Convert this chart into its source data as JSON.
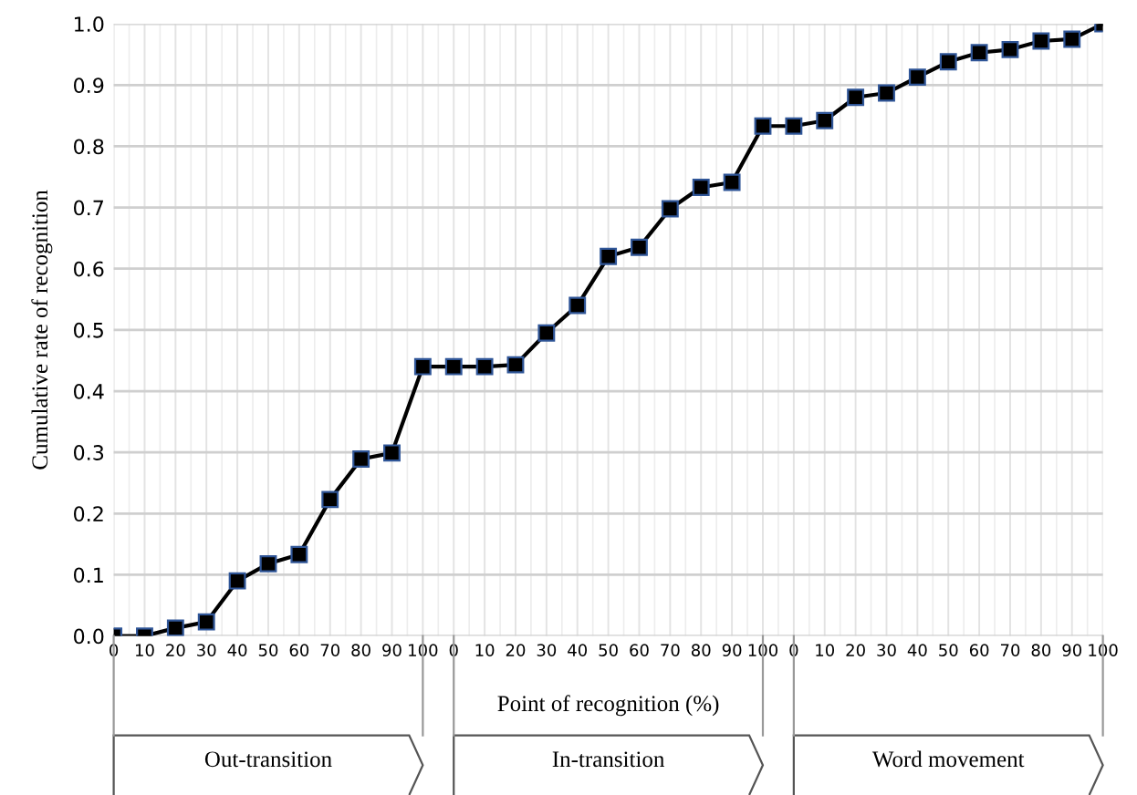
{
  "chart_data": {
    "type": "line",
    "xlabel": "Point of recognition (%)",
    "ylabel": "Cumulative rate of recognition",
    "categories": [
      "0",
      "10",
      "20",
      "30",
      "40",
      "50",
      "60",
      "70",
      "80",
      "90",
      "100",
      "0",
      "10",
      "20",
      "30",
      "40",
      "50",
      "60",
      "70",
      "80",
      "90",
      "100",
      "0",
      "10",
      "20",
      "30",
      "40",
      "50",
      "60",
      "70",
      "80",
      "90",
      "100"
    ],
    "series": [
      {
        "color": "#000000",
        "values": [
          0,
          0,
          0.013,
          0.023,
          0.09,
          0.118,
          0.133,
          0.223,
          0.289,
          0.299,
          0.44,
          0.44,
          0.44,
          0.443,
          0.495,
          0.54,
          0.62,
          0.635,
          0.698,
          0.733,
          0.741,
          0.833,
          0.833,
          0.842,
          0.88,
          0.887,
          0.913,
          0.938,
          0.953,
          0.958,
          0.972,
          0.975,
          1.0
        ]
      }
    ],
    "ylim": [
      0,
      1.0
    ],
    "yticks": [
      {
        "value": 0,
        "label": "0.0"
      },
      0.1,
      0.2,
      0.3,
      0.4,
      0.5,
      0.6,
      0.7,
      0.8,
      0.9,
      {
        "value": 1.0,
        "label": "1.0"
      }
    ],
    "grid": true,
    "marker": "square",
    "line_style": "solid",
    "legend": false,
    "annotations": [
      "Out-transition",
      "In-transition",
      "Word movement"
    ]
  }
}
